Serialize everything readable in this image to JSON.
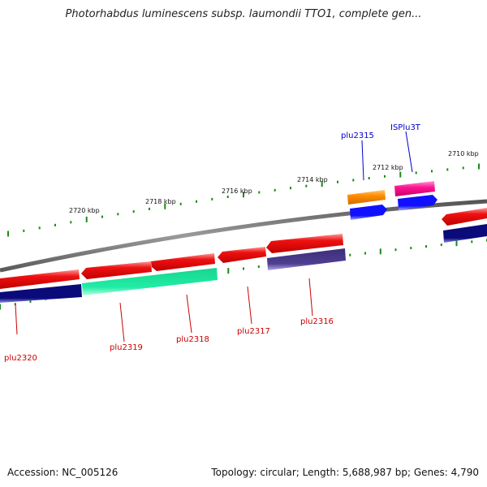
{
  "title": "Photorhabdus luminescens subsp. laumondii TTO1, complete gen...",
  "footer": {
    "accession": "Accession: NC_005126",
    "stats": "Topology: circular; Length: 5,688,987 bp; Genes: 4,790"
  },
  "ruler_labels": [
    "2720 kbp",
    "2718 kbp",
    "2716 kbp",
    "2714 kbp",
    "2712 kbp",
    "2710 kbp"
  ],
  "gene_labels": [
    "plu2315",
    "ISPlu3T",
    "plu2320",
    "plu2319",
    "plu2318",
    "plu2317",
    "plu2316"
  ],
  "colors": {
    "red": "#ee1111",
    "navy": "#0a0a7a",
    "green": "#1de6a0",
    "orange": "#ff8c00",
    "pink": "#ff1493",
    "blue": "#1010ff",
    "purple": "#4a3a8c",
    "ruler": "#1a8a1a",
    "backbone": "#777777",
    "label_red": "#cc0000",
    "label_blue": "#0000cc"
  }
}
